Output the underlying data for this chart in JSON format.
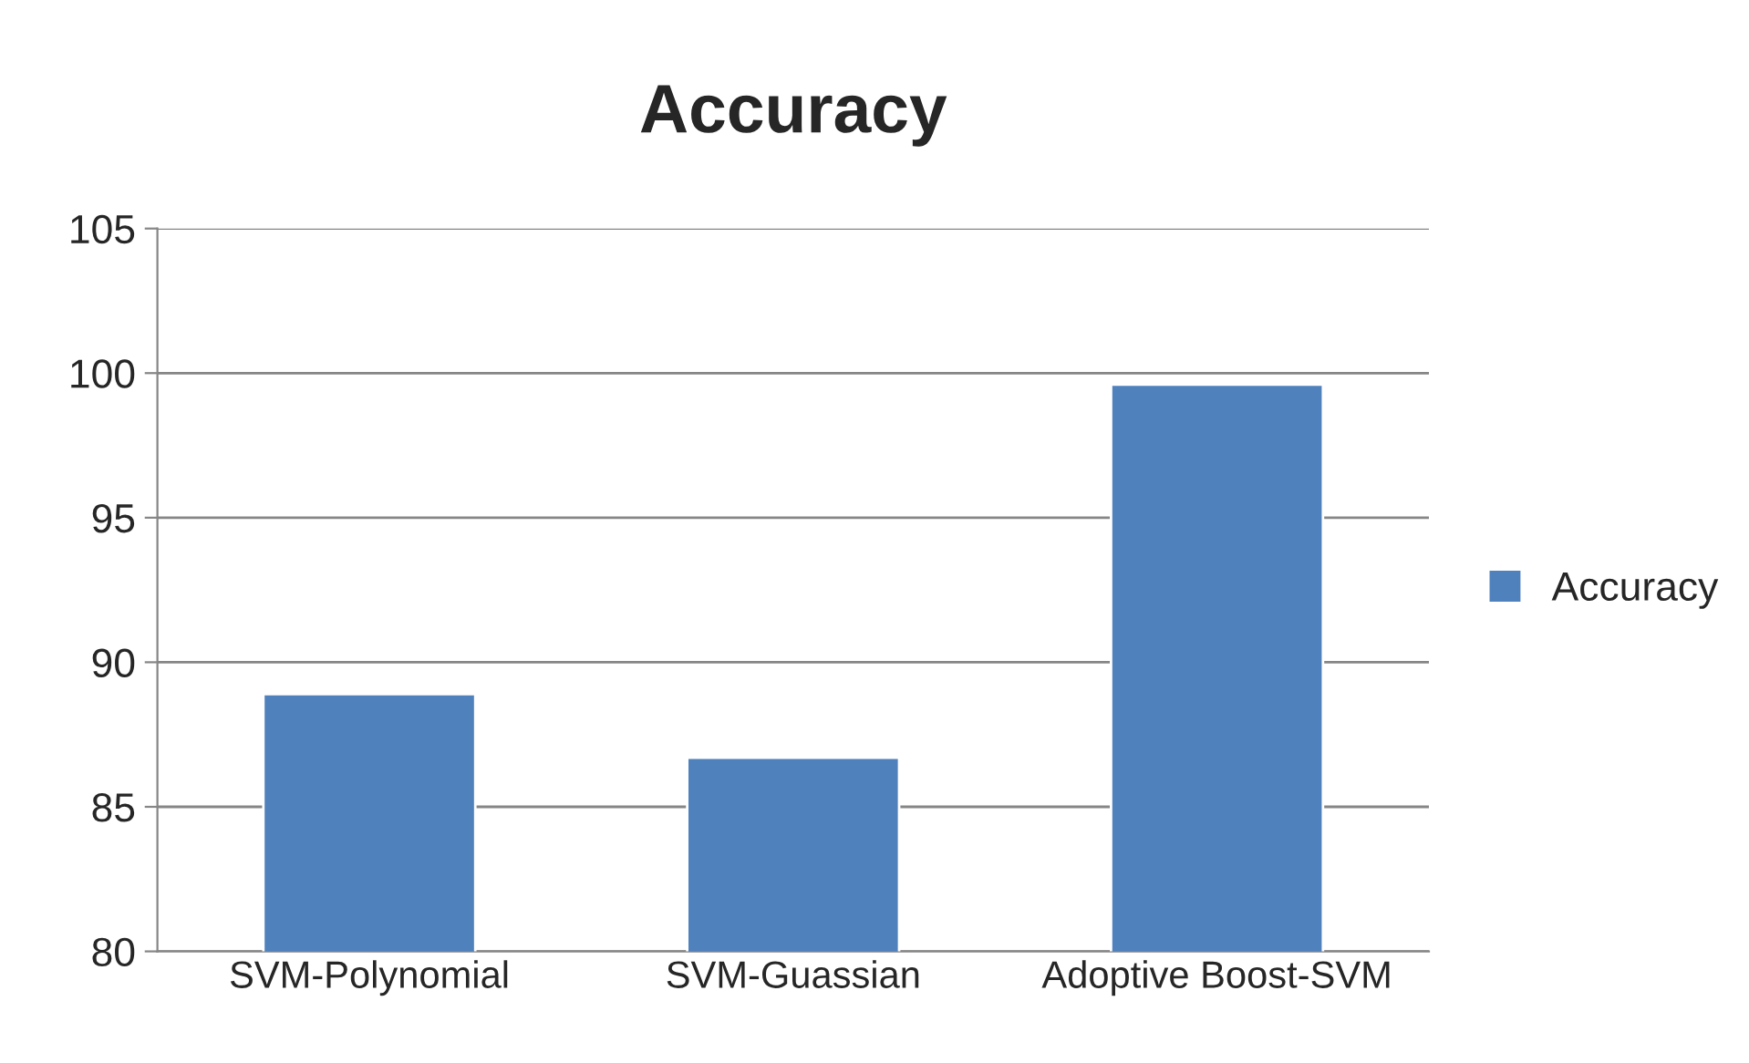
{
  "chart_data": {
    "type": "bar",
    "title": "Accuracy",
    "categories": [
      "SVM-Polynomial",
      "SVM-Guassian",
      "Adoptive Boost-SVM"
    ],
    "series": [
      {
        "name": "Accuracy",
        "color": "#4f81bd",
        "values": [
          88.9,
          86.7,
          99.6
        ]
      }
    ],
    "ylim": [
      80,
      105
    ],
    "yticks": [
      80,
      85,
      90,
      95,
      100,
      105
    ],
    "grid": "y",
    "legend": "right"
  }
}
